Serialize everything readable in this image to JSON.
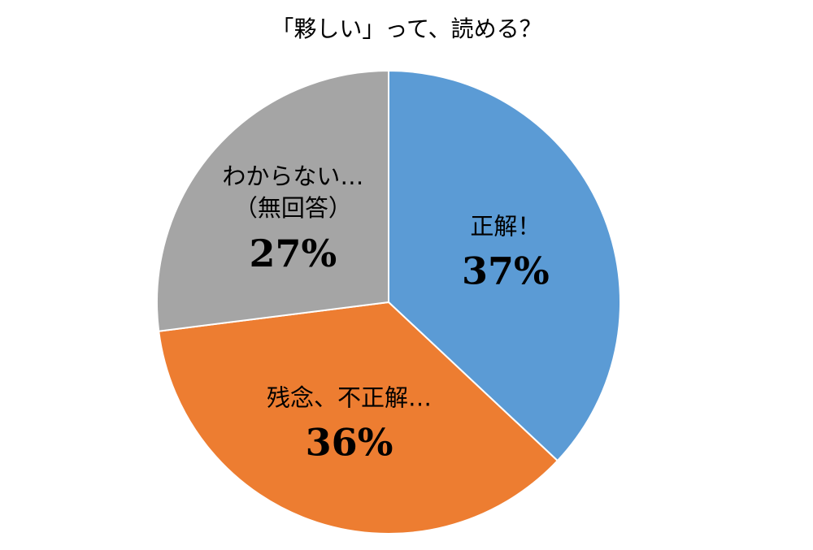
{
  "chart_data": {
    "type": "pie",
    "title": "「夥しい」って、読める？",
    "categories": [
      "正解！",
      "残念、不正解…",
      "わからない…\n（無回答）"
    ],
    "values": [
      37,
      36,
      27
    ],
    "value_labels": [
      "37%",
      "36%",
      "27%"
    ],
    "colors": [
      "#5b9bd5",
      "#ed7d31",
      "#a5a5a5"
    ]
  }
}
